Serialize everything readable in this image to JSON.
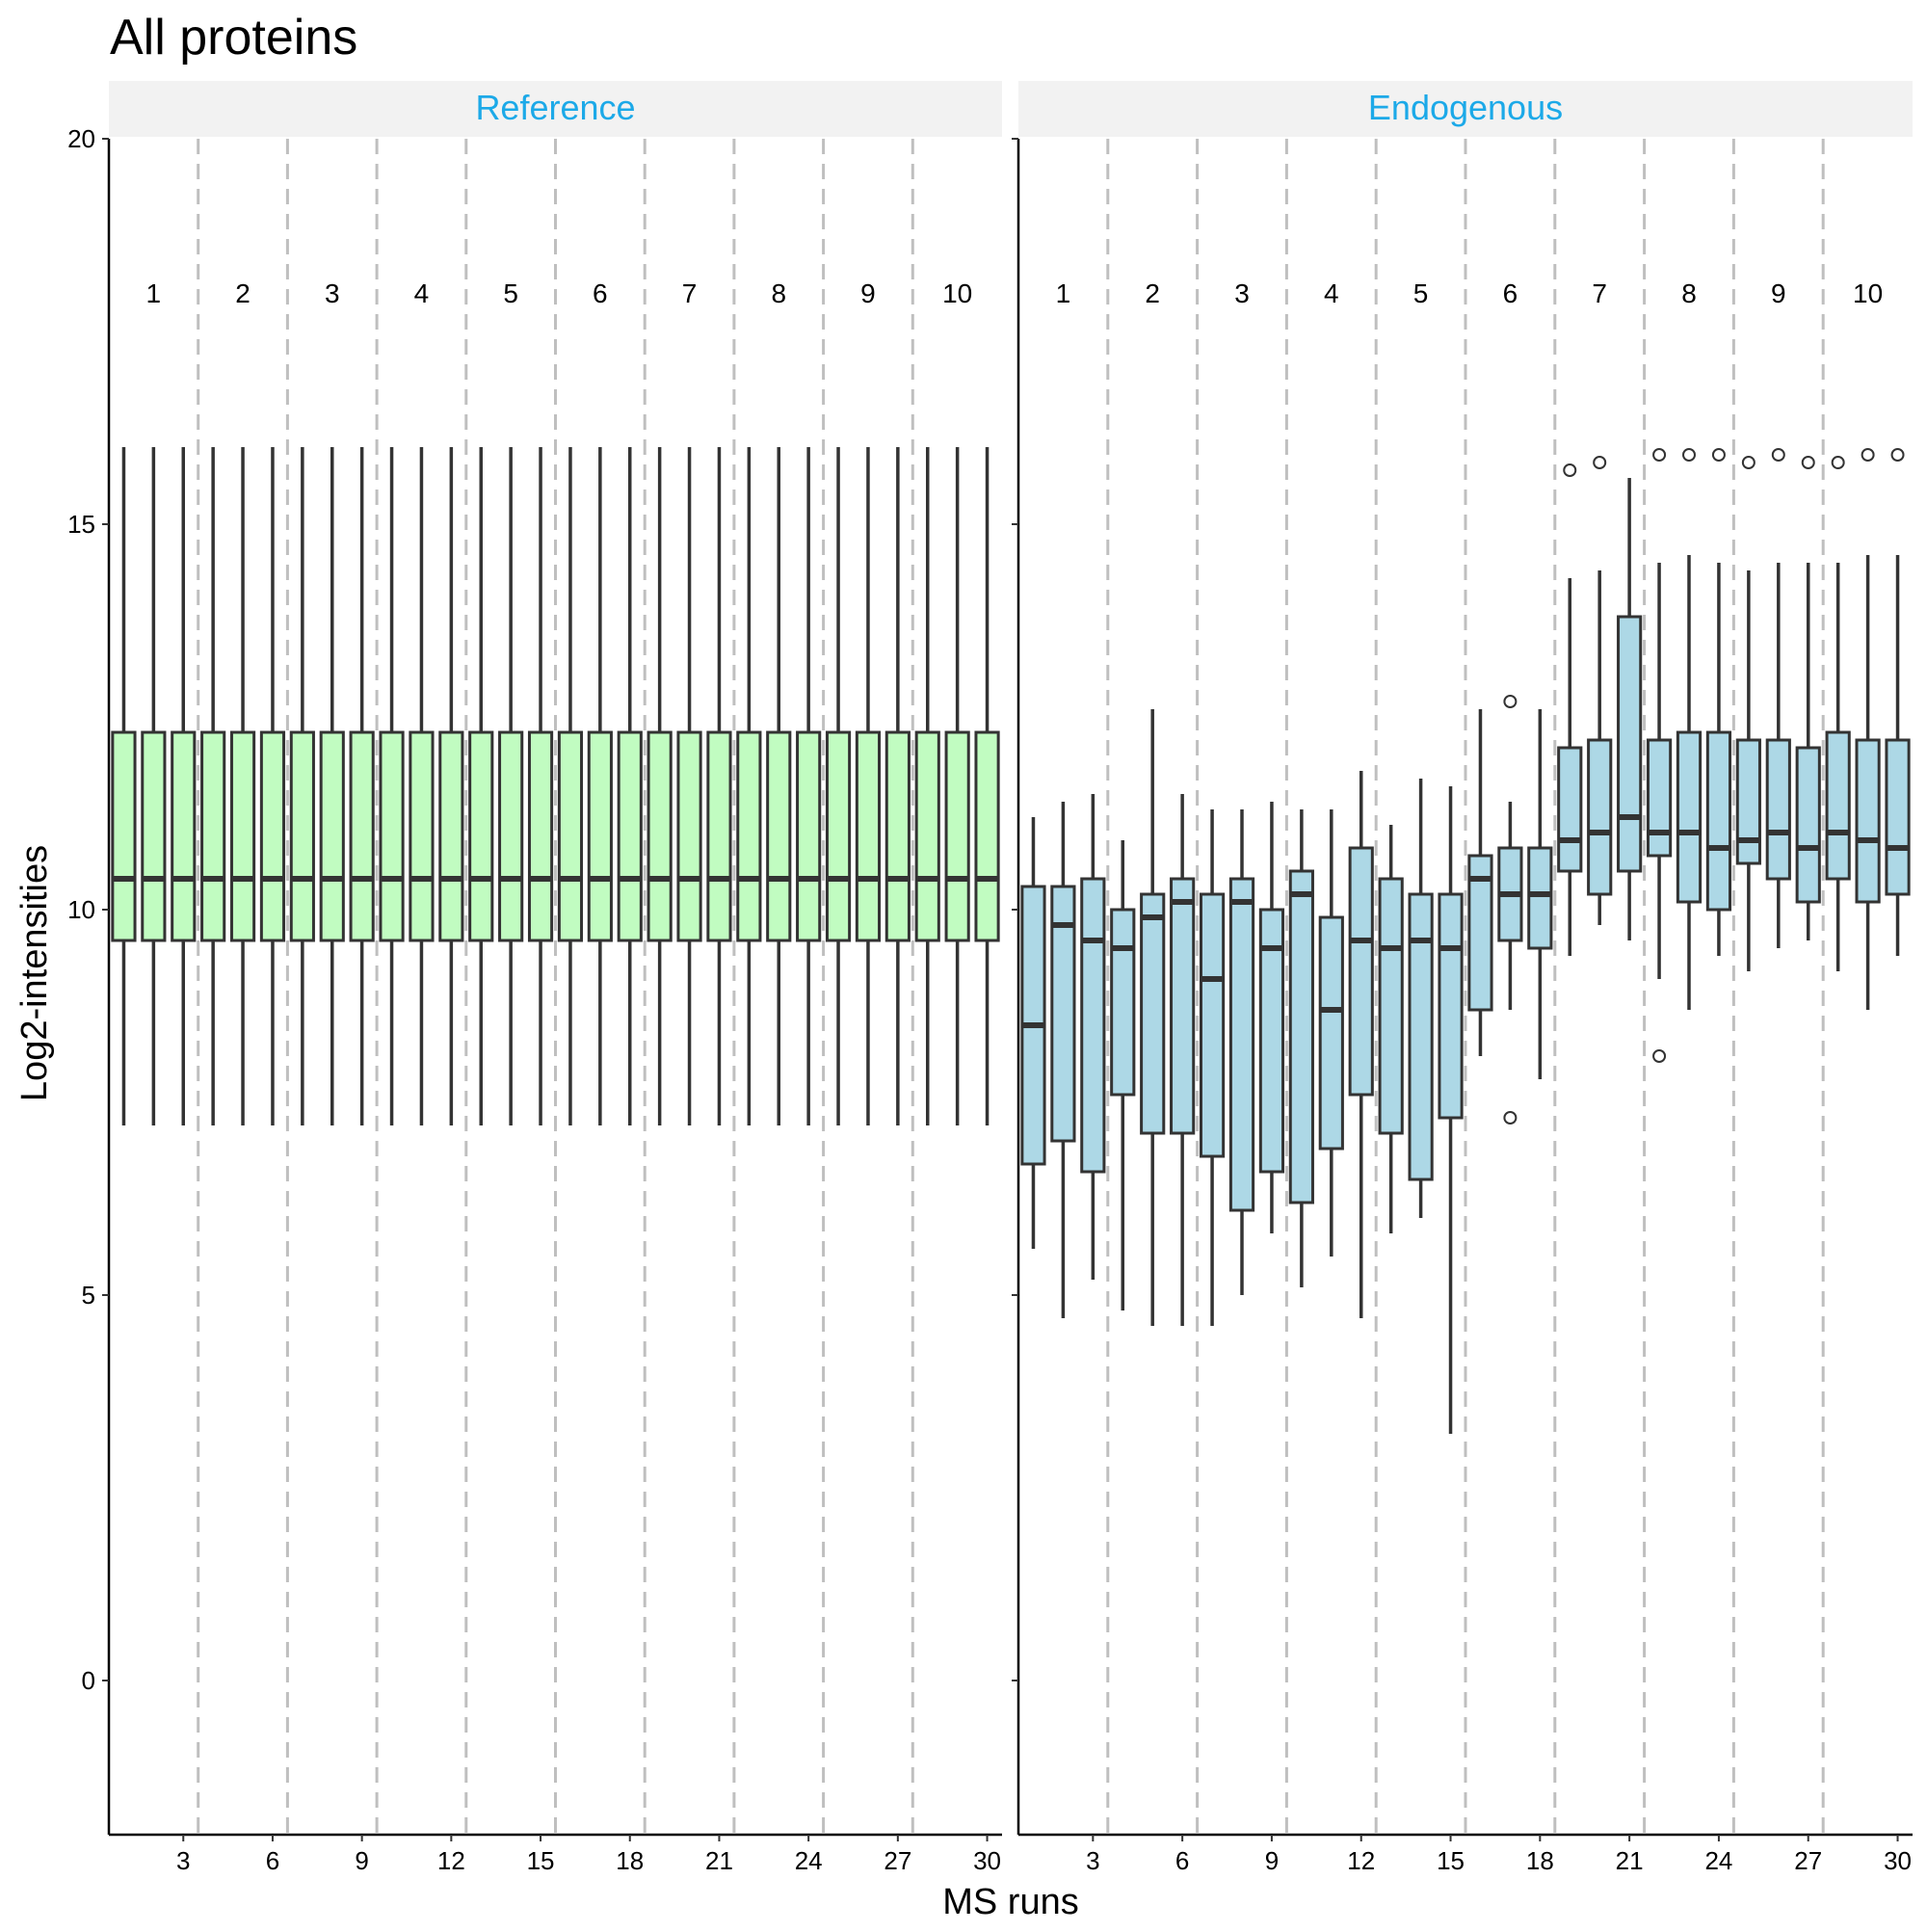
{
  "chart_data": {
    "type": "boxplot",
    "title": "All proteins",
    "xlabel": "MS runs",
    "ylabel": "Log2-intensities",
    "ylim": [
      -2,
      20
    ],
    "xlim": [
      0.5,
      30.5
    ],
    "y_ticks": [
      0,
      5,
      10,
      15,
      20
    ],
    "y_tick_labels": [
      "0",
      "5",
      "10",
      "15",
      "20"
    ],
    "x_ticks": [
      3,
      6,
      9,
      12,
      15,
      18,
      21,
      24,
      27,
      30
    ],
    "x_tick_labels": [
      "3",
      "6",
      "9",
      "12",
      "15",
      "18",
      "21",
      "24",
      "27",
      "30"
    ],
    "grid": false,
    "group_separators": [
      3.5,
      6.5,
      9.5,
      12.5,
      15.5,
      18.5,
      21.5,
      24.5,
      27.5
    ],
    "group_labels": [
      "1",
      "2",
      "3",
      "4",
      "5",
      "6",
      "7",
      "8",
      "9",
      "10"
    ],
    "group_label_y": 18,
    "colors": {
      "Reference": "#c1fcc1",
      "Endogenous": "#add8e6",
      "strip_text": "#1ca9e8",
      "strip_bg": "#f2f2f2",
      "separator": "#bfbfbf",
      "box_line": "#333333"
    },
    "panels": [
      {
        "name": "Reference",
        "boxes": [
          {
            "x": 1,
            "lower_whisker": 7.2,
            "q1": 9.6,
            "median": 10.4,
            "q3": 12.3,
            "upper_whisker": 16.0,
            "outliers": []
          },
          {
            "x": 2,
            "lower_whisker": 7.2,
            "q1": 9.6,
            "median": 10.4,
            "q3": 12.3,
            "upper_whisker": 16.0,
            "outliers": []
          },
          {
            "x": 3,
            "lower_whisker": 7.2,
            "q1": 9.6,
            "median": 10.4,
            "q3": 12.3,
            "upper_whisker": 16.0,
            "outliers": []
          },
          {
            "x": 4,
            "lower_whisker": 7.2,
            "q1": 9.6,
            "median": 10.4,
            "q3": 12.3,
            "upper_whisker": 16.0,
            "outliers": []
          },
          {
            "x": 5,
            "lower_whisker": 7.2,
            "q1": 9.6,
            "median": 10.4,
            "q3": 12.3,
            "upper_whisker": 16.0,
            "outliers": []
          },
          {
            "x": 6,
            "lower_whisker": 7.2,
            "q1": 9.6,
            "median": 10.4,
            "q3": 12.3,
            "upper_whisker": 16.0,
            "outliers": []
          },
          {
            "x": 7,
            "lower_whisker": 7.2,
            "q1": 9.6,
            "median": 10.4,
            "q3": 12.3,
            "upper_whisker": 16.0,
            "outliers": []
          },
          {
            "x": 8,
            "lower_whisker": 7.2,
            "q1": 9.6,
            "median": 10.4,
            "q3": 12.3,
            "upper_whisker": 16.0,
            "outliers": []
          },
          {
            "x": 9,
            "lower_whisker": 7.2,
            "q1": 9.6,
            "median": 10.4,
            "q3": 12.3,
            "upper_whisker": 16.0,
            "outliers": []
          },
          {
            "x": 10,
            "lower_whisker": 7.2,
            "q1": 9.6,
            "median": 10.4,
            "q3": 12.3,
            "upper_whisker": 16.0,
            "outliers": []
          },
          {
            "x": 11,
            "lower_whisker": 7.2,
            "q1": 9.6,
            "median": 10.4,
            "q3": 12.3,
            "upper_whisker": 16.0,
            "outliers": []
          },
          {
            "x": 12,
            "lower_whisker": 7.2,
            "q1": 9.6,
            "median": 10.4,
            "q3": 12.3,
            "upper_whisker": 16.0,
            "outliers": []
          },
          {
            "x": 13,
            "lower_whisker": 7.2,
            "q1": 9.6,
            "median": 10.4,
            "q3": 12.3,
            "upper_whisker": 16.0,
            "outliers": []
          },
          {
            "x": 14,
            "lower_whisker": 7.2,
            "q1": 9.6,
            "median": 10.4,
            "q3": 12.3,
            "upper_whisker": 16.0,
            "outliers": []
          },
          {
            "x": 15,
            "lower_whisker": 7.2,
            "q1": 9.6,
            "median": 10.4,
            "q3": 12.3,
            "upper_whisker": 16.0,
            "outliers": []
          },
          {
            "x": 16,
            "lower_whisker": 7.2,
            "q1": 9.6,
            "median": 10.4,
            "q3": 12.3,
            "upper_whisker": 16.0,
            "outliers": []
          },
          {
            "x": 17,
            "lower_whisker": 7.2,
            "q1": 9.6,
            "median": 10.4,
            "q3": 12.3,
            "upper_whisker": 16.0,
            "outliers": []
          },
          {
            "x": 18,
            "lower_whisker": 7.2,
            "q1": 9.6,
            "median": 10.4,
            "q3": 12.3,
            "upper_whisker": 16.0,
            "outliers": []
          },
          {
            "x": 19,
            "lower_whisker": 7.2,
            "q1": 9.6,
            "median": 10.4,
            "q3": 12.3,
            "upper_whisker": 16.0,
            "outliers": []
          },
          {
            "x": 20,
            "lower_whisker": 7.2,
            "q1": 9.6,
            "median": 10.4,
            "q3": 12.3,
            "upper_whisker": 16.0,
            "outliers": []
          },
          {
            "x": 21,
            "lower_whisker": 7.2,
            "q1": 9.6,
            "median": 10.4,
            "q3": 12.3,
            "upper_whisker": 16.0,
            "outliers": []
          },
          {
            "x": 22,
            "lower_whisker": 7.2,
            "q1": 9.6,
            "median": 10.4,
            "q3": 12.3,
            "upper_whisker": 16.0,
            "outliers": []
          },
          {
            "x": 23,
            "lower_whisker": 7.2,
            "q1": 9.6,
            "median": 10.4,
            "q3": 12.3,
            "upper_whisker": 16.0,
            "outliers": []
          },
          {
            "x": 24,
            "lower_whisker": 7.2,
            "q1": 9.6,
            "median": 10.4,
            "q3": 12.3,
            "upper_whisker": 16.0,
            "outliers": []
          },
          {
            "x": 25,
            "lower_whisker": 7.2,
            "q1": 9.6,
            "median": 10.4,
            "q3": 12.3,
            "upper_whisker": 16.0,
            "outliers": []
          },
          {
            "x": 26,
            "lower_whisker": 7.2,
            "q1": 9.6,
            "median": 10.4,
            "q3": 12.3,
            "upper_whisker": 16.0,
            "outliers": []
          },
          {
            "x": 27,
            "lower_whisker": 7.2,
            "q1": 9.6,
            "median": 10.4,
            "q3": 12.3,
            "upper_whisker": 16.0,
            "outliers": []
          },
          {
            "x": 28,
            "lower_whisker": 7.2,
            "q1": 9.6,
            "median": 10.4,
            "q3": 12.3,
            "upper_whisker": 16.0,
            "outliers": []
          },
          {
            "x": 29,
            "lower_whisker": 7.2,
            "q1": 9.6,
            "median": 10.4,
            "q3": 12.3,
            "upper_whisker": 16.0,
            "outliers": []
          },
          {
            "x": 30,
            "lower_whisker": 7.2,
            "q1": 9.6,
            "median": 10.4,
            "q3": 12.3,
            "upper_whisker": 16.0,
            "outliers": []
          }
        ]
      },
      {
        "name": "Endogenous",
        "boxes": [
          {
            "x": 1,
            "lower_whisker": 5.6,
            "q1": 6.7,
            "median": 8.5,
            "q3": 10.3,
            "upper_whisker": 11.2,
            "outliers": []
          },
          {
            "x": 2,
            "lower_whisker": 4.7,
            "q1": 7.0,
            "median": 9.8,
            "q3": 10.3,
            "upper_whisker": 11.4,
            "outliers": []
          },
          {
            "x": 3,
            "lower_whisker": 5.2,
            "q1": 6.6,
            "median": 9.6,
            "q3": 10.4,
            "upper_whisker": 11.5,
            "outliers": []
          },
          {
            "x": 4,
            "lower_whisker": 4.8,
            "q1": 7.6,
            "median": 9.5,
            "q3": 10.0,
            "upper_whisker": 10.9,
            "outliers": []
          },
          {
            "x": 5,
            "lower_whisker": 4.6,
            "q1": 7.1,
            "median": 9.9,
            "q3": 10.2,
            "upper_whisker": 12.6,
            "outliers": []
          },
          {
            "x": 6,
            "lower_whisker": 4.6,
            "q1": 7.1,
            "median": 10.1,
            "q3": 10.4,
            "upper_whisker": 11.5,
            "outliers": []
          },
          {
            "x": 7,
            "lower_whisker": 4.6,
            "q1": 6.8,
            "median": 9.1,
            "q3": 10.2,
            "upper_whisker": 11.3,
            "outliers": []
          },
          {
            "x": 8,
            "lower_whisker": 5.0,
            "q1": 6.1,
            "median": 10.1,
            "q3": 10.4,
            "upper_whisker": 11.3,
            "outliers": []
          },
          {
            "x": 9,
            "lower_whisker": 5.8,
            "q1": 6.6,
            "median": 9.5,
            "q3": 10.0,
            "upper_whisker": 11.4,
            "outliers": []
          },
          {
            "x": 10,
            "lower_whisker": 5.1,
            "q1": 6.2,
            "median": 10.2,
            "q3": 10.5,
            "upper_whisker": 11.3,
            "outliers": []
          },
          {
            "x": 11,
            "lower_whisker": 5.5,
            "q1": 6.9,
            "median": 8.7,
            "q3": 9.9,
            "upper_whisker": 11.3,
            "outliers": []
          },
          {
            "x": 12,
            "lower_whisker": 4.7,
            "q1": 7.6,
            "median": 9.6,
            "q3": 10.8,
            "upper_whisker": 11.8,
            "outliers": []
          },
          {
            "x": 13,
            "lower_whisker": 5.8,
            "q1": 7.1,
            "median": 9.5,
            "q3": 10.4,
            "upper_whisker": 11.1,
            "outliers": []
          },
          {
            "x": 14,
            "lower_whisker": 6.0,
            "q1": 6.5,
            "median": 9.6,
            "q3": 10.2,
            "upper_whisker": 11.7,
            "outliers": []
          },
          {
            "x": 15,
            "lower_whisker": 3.2,
            "q1": 7.3,
            "median": 9.5,
            "q3": 10.2,
            "upper_whisker": 11.6,
            "outliers": []
          },
          {
            "x": 16,
            "lower_whisker": 8.1,
            "q1": 8.7,
            "median": 10.4,
            "q3": 10.7,
            "upper_whisker": 12.6,
            "outliers": []
          },
          {
            "x": 17,
            "lower_whisker": 8.7,
            "q1": 9.6,
            "median": 10.2,
            "q3": 10.8,
            "upper_whisker": 11.4,
            "outliers": [
              12.7,
              7.3
            ]
          },
          {
            "x": 18,
            "lower_whisker": 7.8,
            "q1": 9.5,
            "median": 10.2,
            "q3": 10.8,
            "upper_whisker": 12.6,
            "outliers": []
          },
          {
            "x": 19,
            "lower_whisker": 9.4,
            "q1": 10.5,
            "median": 10.9,
            "q3": 12.1,
            "upper_whisker": 14.3,
            "outliers": [
              15.7
            ]
          },
          {
            "x": 20,
            "lower_whisker": 9.8,
            "q1": 10.2,
            "median": 11.0,
            "q3": 12.2,
            "upper_whisker": 14.4,
            "outliers": [
              15.8
            ]
          },
          {
            "x": 21,
            "lower_whisker": 9.6,
            "q1": 10.5,
            "median": 11.2,
            "q3": 13.8,
            "upper_whisker": 15.6,
            "outliers": []
          },
          {
            "x": 22,
            "lower_whisker": 9.1,
            "q1": 10.7,
            "median": 11.0,
            "q3": 12.2,
            "upper_whisker": 14.5,
            "outliers": [
              15.9,
              8.1
            ]
          },
          {
            "x": 23,
            "lower_whisker": 8.7,
            "q1": 10.1,
            "median": 11.0,
            "q3": 12.3,
            "upper_whisker": 14.6,
            "outliers": [
              15.9
            ]
          },
          {
            "x": 24,
            "lower_whisker": 9.4,
            "q1": 10.0,
            "median": 10.8,
            "q3": 12.3,
            "upper_whisker": 14.5,
            "outliers": [
              15.9
            ]
          },
          {
            "x": 25,
            "lower_whisker": 9.2,
            "q1": 10.6,
            "median": 10.9,
            "q3": 12.2,
            "upper_whisker": 14.4,
            "outliers": [
              15.8
            ]
          },
          {
            "x": 26,
            "lower_whisker": 9.5,
            "q1": 10.4,
            "median": 11.0,
            "q3": 12.2,
            "upper_whisker": 14.5,
            "outliers": [
              15.9
            ]
          },
          {
            "x": 27,
            "lower_whisker": 9.6,
            "q1": 10.1,
            "median": 10.8,
            "q3": 12.1,
            "upper_whisker": 14.5,
            "outliers": [
              15.8
            ]
          },
          {
            "x": 28,
            "lower_whisker": 9.2,
            "q1": 10.4,
            "median": 11.0,
            "q3": 12.3,
            "upper_whisker": 14.5,
            "outliers": [
              15.8
            ]
          },
          {
            "x": 29,
            "lower_whisker": 8.7,
            "q1": 10.1,
            "median": 10.9,
            "q3": 12.2,
            "upper_whisker": 14.6,
            "outliers": [
              15.9
            ]
          },
          {
            "x": 30,
            "lower_whisker": 9.4,
            "q1": 10.2,
            "median": 10.8,
            "q3": 12.2,
            "upper_whisker": 14.6,
            "outliers": [
              15.9
            ]
          }
        ]
      }
    ]
  }
}
